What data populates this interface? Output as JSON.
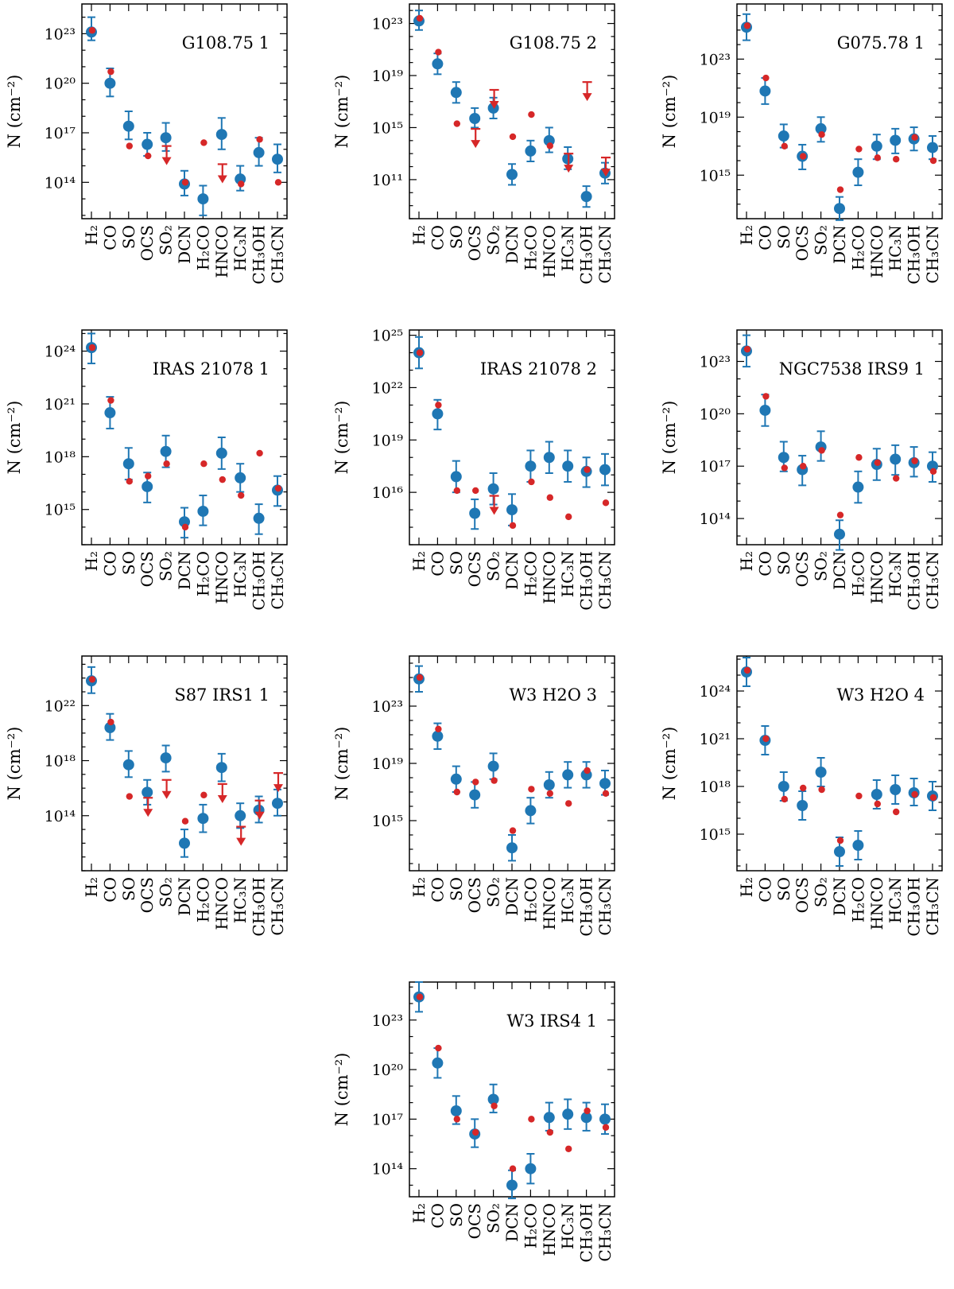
{
  "figure": {
    "y_axis_label": "N (cm⁻²)",
    "molecules": [
      "H₂",
      "CO",
      "SO",
      "OCS",
      "SO₂",
      "DCN",
      "H₂CO",
      "HNCO",
      "HC₃N",
      "CH₃OH",
      "CH₃CN"
    ]
  },
  "colors": {
    "observed": "#1f77b4",
    "model": "#d62728"
  },
  "chart_data": [
    {
      "type": "scatter",
      "title": "G108.75 1",
      "ylim_log": [
        11.8,
        24.8
      ],
      "yticks": [
        14,
        17,
        20,
        23
      ],
      "observed": [
        {
          "v": 23.1,
          "lo": 22.6,
          "hi": 24.0
        },
        {
          "v": 20.0,
          "lo": 19.2,
          "hi": 20.9
        },
        {
          "v": 17.4,
          "lo": 16.6,
          "hi": 18.3
        },
        {
          "v": 16.3,
          "lo": 15.6,
          "hi": 17.0
        },
        {
          "v": 16.7,
          "lo": 15.9,
          "hi": 17.6
        },
        {
          "v": 13.9,
          "lo": 13.2,
          "hi": 14.7
        },
        {
          "v": 13.0,
          "lo": 12.0,
          "hi": 13.8
        },
        {
          "v": 16.9,
          "lo": 16.0,
          "hi": 17.9
        },
        {
          "v": 14.2,
          "lo": 13.5,
          "hi": 15.0
        },
        {
          "v": 15.8,
          "lo": 15.0,
          "hi": 16.7
        },
        {
          "v": 15.4,
          "lo": 14.6,
          "hi": 16.3
        }
      ],
      "model": [
        {
          "v": 23.2
        },
        {
          "v": 20.7
        },
        {
          "v": 16.2
        },
        {
          "v": 15.6
        },
        {
          "v": 16.2,
          "upper": true
        },
        {
          "v": 14.0
        },
        {
          "v": 16.4
        },
        {
          "v": 15.1,
          "upper": true
        },
        {
          "v": 13.9
        },
        {
          "v": 16.6
        },
        {
          "v": 14.0
        }
      ]
    },
    {
      "type": "scatter",
      "title": "G108.75 2",
      "ylim_log": [
        8.0,
        24.5
      ],
      "yticks": [
        11,
        15,
        19,
        23
      ],
      "observed": [
        {
          "v": 23.2,
          "lo": 22.5,
          "hi": 24.0
        },
        {
          "v": 19.9,
          "lo": 19.1,
          "hi": 20.7
        },
        {
          "v": 17.7,
          "lo": 16.9,
          "hi": 18.5
        },
        {
          "v": 15.7,
          "lo": 15.0,
          "hi": 16.5
        },
        {
          "v": 16.5,
          "lo": 15.7,
          "hi": 17.3
        },
        {
          "v": 11.4,
          "lo": 10.6,
          "hi": 12.2
        },
        {
          "v": 13.2,
          "lo": 12.4,
          "hi": 14.0
        },
        {
          "v": 14.0,
          "lo": 13.1,
          "hi": 15.0
        },
        {
          "v": 12.6,
          "lo": 11.8,
          "hi": 13.5
        },
        {
          "v": 9.7,
          "lo": 8.9,
          "hi": 10.5
        },
        {
          "v": 11.5,
          "lo": 10.7,
          "hi": 12.3
        }
      ],
      "model": [
        {
          "v": 23.4
        },
        {
          "v": 20.8
        },
        {
          "v": 15.3
        },
        {
          "v": 14.9,
          "upper": true
        },
        {
          "v": 17.9,
          "upper": true
        },
        {
          "v": 14.3
        },
        {
          "v": 16.0
        },
        {
          "v": 13.6
        },
        {
          "v": 13.0,
          "upper": true
        },
        {
          "v": 18.5,
          "upper": true
        },
        {
          "v": 12.7,
          "upper": true
        }
      ]
    },
    {
      "type": "scatter",
      "title": "G075.78 1",
      "ylim_log": [
        12.0,
        26.8
      ],
      "yticks": [
        15,
        19,
        23
      ],
      "observed": [
        {
          "v": 25.2,
          "lo": 24.3,
          "hi": 26.1
        },
        {
          "v": 20.8,
          "lo": 19.9,
          "hi": 21.7
        },
        {
          "v": 17.7,
          "lo": 16.9,
          "hi": 18.5
        },
        {
          "v": 16.3,
          "lo": 15.4,
          "hi": 17.1
        },
        {
          "v": 18.2,
          "lo": 17.3,
          "hi": 19.0
        },
        {
          "v": 12.7,
          "lo": 11.9,
          "hi": 13.5
        },
        {
          "v": 15.2,
          "lo": 14.3,
          "hi": 16.1
        },
        {
          "v": 17.0,
          "lo": 16.1,
          "hi": 17.8
        },
        {
          "v": 17.4,
          "lo": 16.5,
          "hi": 18.2
        },
        {
          "v": 17.5,
          "lo": 16.7,
          "hi": 18.3
        },
        {
          "v": 16.9,
          "lo": 16.1,
          "hi": 17.7
        }
      ],
      "model": [
        {
          "v": 25.3
        },
        {
          "v": 21.7
        },
        {
          "v": 17.0
        },
        {
          "v": 16.3
        },
        {
          "v": 17.8
        },
        {
          "v": 14.0
        },
        {
          "v": 16.8
        },
        {
          "v": 16.2
        },
        {
          "v": 16.1
        },
        {
          "v": 17.6
        },
        {
          "v": 16.0
        }
      ]
    },
    {
      "type": "scatter",
      "title": "IRAS 21078 1",
      "ylim_log": [
        13.0,
        25.2
      ],
      "yticks": [
        15,
        18,
        21,
        24
      ],
      "observed": [
        {
          "v": 24.2,
          "lo": 23.3,
          "hi": 25.0
        },
        {
          "v": 20.5,
          "lo": 19.6,
          "hi": 21.4
        },
        {
          "v": 17.6,
          "lo": 16.7,
          "hi": 18.5
        },
        {
          "v": 16.3,
          "lo": 15.4,
          "hi": 17.1
        },
        {
          "v": 18.3,
          "lo": 17.4,
          "hi": 19.2
        },
        {
          "v": 14.3,
          "lo": 13.4,
          "hi": 15.1
        },
        {
          "v": 14.9,
          "lo": 14.1,
          "hi": 15.8
        },
        {
          "v": 18.2,
          "lo": 17.3,
          "hi": 19.1
        },
        {
          "v": 16.8,
          "lo": 16.0,
          "hi": 17.6
        },
        {
          "v": 14.5,
          "lo": 13.6,
          "hi": 15.3
        },
        {
          "v": 16.1,
          "lo": 15.2,
          "hi": 16.9
        }
      ],
      "model": [
        {
          "v": 24.2
        },
        {
          "v": 21.2
        },
        {
          "v": 16.6
        },
        {
          "v": 16.9
        },
        {
          "v": 17.6
        },
        {
          "v": 14.0
        },
        {
          "v": 17.6
        },
        {
          "v": 16.7
        },
        {
          "v": 15.8
        },
        {
          "v": 18.2
        },
        {
          "v": 16.2
        }
      ]
    },
    {
      "type": "scatter",
      "title": "IRAS 21078 2",
      "ylim_log": [
        13.0,
        25.3
      ],
      "yticks": [
        16,
        19,
        22,
        25
      ],
      "observed": [
        {
          "v": 24.0,
          "lo": 23.1,
          "hi": 24.9
        },
        {
          "v": 20.5,
          "lo": 19.6,
          "hi": 21.3
        },
        {
          "v": 16.9,
          "lo": 16.0,
          "hi": 17.8
        },
        {
          "v": 14.8,
          "lo": 13.9,
          "hi": 15.6
        },
        {
          "v": 16.2,
          "lo": 15.3,
          "hi": 17.1
        },
        {
          "v": 15.0,
          "lo": 14.1,
          "hi": 15.9
        },
        {
          "v": 17.5,
          "lo": 16.6,
          "hi": 18.4
        },
        {
          "v": 18.0,
          "lo": 17.1,
          "hi": 18.9
        },
        {
          "v": 17.5,
          "lo": 16.6,
          "hi": 18.4
        },
        {
          "v": 17.2,
          "lo": 16.3,
          "hi": 18.0
        },
        {
          "v": 17.3,
          "lo": 16.4,
          "hi": 18.2
        }
      ],
      "model": [
        {
          "v": 24.0
        },
        {
          "v": 21.0
        },
        {
          "v": 16.1
        },
        {
          "v": 16.1
        },
        {
          "v": 15.8,
          "upper": true
        },
        {
          "v": 14.1
        },
        {
          "v": 16.6
        },
        {
          "v": 15.7
        },
        {
          "v": 14.6
        },
        {
          "v": 17.3
        },
        {
          "v": 15.4
        }
      ]
    },
    {
      "type": "scatter",
      "title": "NGC7538 IRS9 1",
      "ylim_log": [
        12.5,
        24.8
      ],
      "yticks": [
        14,
        17,
        20,
        23
      ],
      "observed": [
        {
          "v": 23.6,
          "lo": 22.7,
          "hi": 24.5
        },
        {
          "v": 20.2,
          "lo": 19.3,
          "hi": 21.1
        },
        {
          "v": 17.5,
          "lo": 16.7,
          "hi": 18.4
        },
        {
          "v": 16.8,
          "lo": 15.9,
          "hi": 17.6
        },
        {
          "v": 18.1,
          "lo": 17.3,
          "hi": 19.0
        },
        {
          "v": 13.1,
          "lo": 12.2,
          "hi": 13.9
        },
        {
          "v": 15.8,
          "lo": 14.9,
          "hi": 16.7
        },
        {
          "v": 17.1,
          "lo": 16.2,
          "hi": 18.0
        },
        {
          "v": 17.4,
          "lo": 16.5,
          "hi": 18.2
        },
        {
          "v": 17.2,
          "lo": 16.4,
          "hi": 18.1
        },
        {
          "v": 17.0,
          "lo": 16.1,
          "hi": 17.8
        }
      ],
      "model": [
        {
          "v": 23.7
        },
        {
          "v": 21.0
        },
        {
          "v": 16.9
        },
        {
          "v": 17.0
        },
        {
          "v": 17.9
        },
        {
          "v": 14.2
        },
        {
          "v": 17.5
        },
        {
          "v": 17.2
        },
        {
          "v": 16.3
        },
        {
          "v": 17.3
        },
        {
          "v": 16.7
        }
      ]
    },
    {
      "type": "scatter",
      "title": "S87 IRS1 1",
      "ylim_log": [
        10.0,
        25.6
      ],
      "yticks": [
        14,
        18,
        22
      ],
      "observed": [
        {
          "v": 23.8,
          "lo": 22.9,
          "hi": 24.8
        },
        {
          "v": 20.4,
          "lo": 19.5,
          "hi": 21.4
        },
        {
          "v": 17.7,
          "lo": 16.8,
          "hi": 18.7
        },
        {
          "v": 15.7,
          "lo": 14.8,
          "hi": 16.6
        },
        {
          "v": 18.2,
          "lo": 17.2,
          "hi": 19.1
        },
        {
          "v": 12.0,
          "lo": 11.0,
          "hi": 13.0
        },
        {
          "v": 13.8,
          "lo": 12.8,
          "hi": 14.8
        },
        {
          "v": 17.5,
          "lo": 16.5,
          "hi": 18.5
        },
        {
          "v": 14.0,
          "lo": 13.1,
          "hi": 14.9
        },
        {
          "v": 14.4,
          "lo": 13.5,
          "hi": 15.4
        },
        {
          "v": 14.9,
          "lo": 14.0,
          "hi": 15.9
        }
      ],
      "model": [
        {
          "v": 23.9
        },
        {
          "v": 20.8
        },
        {
          "v": 15.4
        },
        {
          "v": 15.3,
          "upper": true
        },
        {
          "v": 16.6,
          "upper": true
        },
        {
          "v": 13.6
        },
        {
          "v": 15.5
        },
        {
          "v": 16.3,
          "upper": true
        },
        {
          "v": 13.2,
          "upper": true
        },
        {
          "v": 15.1,
          "upper": true
        },
        {
          "v": 17.1,
          "upper": true
        }
      ]
    },
    {
      "type": "scatter",
      "title": "W3 H2O 3",
      "ylim_log": [
        11.5,
        26.5
      ],
      "yticks": [
        15,
        19,
        23
      ],
      "observed": [
        {
          "v": 24.9,
          "lo": 24.0,
          "hi": 25.8
        },
        {
          "v": 20.9,
          "lo": 20.0,
          "hi": 21.8
        },
        {
          "v": 17.9,
          "lo": 17.0,
          "hi": 18.8
        },
        {
          "v": 16.8,
          "lo": 15.9,
          "hi": 17.7
        },
        {
          "v": 18.8,
          "lo": 17.9,
          "hi": 19.7
        },
        {
          "v": 13.1,
          "lo": 12.2,
          "hi": 14.0
        },
        {
          "v": 15.7,
          "lo": 14.8,
          "hi": 16.6
        },
        {
          "v": 17.5,
          "lo": 16.6,
          "hi": 18.4
        },
        {
          "v": 18.2,
          "lo": 17.3,
          "hi": 19.1
        },
        {
          "v": 18.2,
          "lo": 17.3,
          "hi": 19.1
        },
        {
          "v": 17.6,
          "lo": 16.8,
          "hi": 18.5
        }
      ],
      "model": [
        {
          "v": 25.0
        },
        {
          "v": 21.4
        },
        {
          "v": 17.0
        },
        {
          "v": 17.7
        },
        {
          "v": 17.8
        },
        {
          "v": 14.3
        },
        {
          "v": 17.2
        },
        {
          "v": 16.9
        },
        {
          "v": 16.2
        },
        {
          "v": 18.5
        },
        {
          "v": 16.9
        }
      ]
    },
    {
      "type": "scatter",
      "title": "W3 H2O 4",
      "ylim_log": [
        12.7,
        26.2
      ],
      "yticks": [
        15,
        18,
        21,
        24
      ],
      "observed": [
        {
          "v": 25.2,
          "lo": 24.3,
          "hi": 26.1
        },
        {
          "v": 20.9,
          "lo": 20.0,
          "hi": 21.8
        },
        {
          "v": 18.0,
          "lo": 17.1,
          "hi": 18.9
        },
        {
          "v": 16.8,
          "lo": 15.9,
          "hi": 17.7
        },
        {
          "v": 18.9,
          "lo": 18.0,
          "hi": 19.8
        },
        {
          "v": 13.9,
          "lo": 13.0,
          "hi": 14.8
        },
        {
          "v": 14.3,
          "lo": 13.4,
          "hi": 15.2
        },
        {
          "v": 17.5,
          "lo": 16.6,
          "hi": 18.4
        },
        {
          "v": 17.8,
          "lo": 16.9,
          "hi": 18.7
        },
        {
          "v": 17.6,
          "lo": 16.8,
          "hi": 18.5
        },
        {
          "v": 17.4,
          "lo": 16.5,
          "hi": 18.3
        }
      ],
      "model": [
        {
          "v": 25.3
        },
        {
          "v": 21.0
        },
        {
          "v": 17.2
        },
        {
          "v": 17.9
        },
        {
          "v": 17.8
        },
        {
          "v": 14.6
        },
        {
          "v": 17.4
        },
        {
          "v": 16.9
        },
        {
          "v": 16.4
        },
        {
          "v": 17.5
        },
        {
          "v": 17.3
        }
      ]
    },
    {
      "type": "scatter",
      "title": "W3 IRS4 1",
      "ylim_log": [
        12.3,
        25.3
      ],
      "yticks": [
        14,
        17,
        20,
        23
      ],
      "observed": [
        {
          "v": 24.4,
          "lo": 23.5,
          "hi": 25.3
        },
        {
          "v": 20.4,
          "lo": 19.5,
          "hi": 21.3
        },
        {
          "v": 17.5,
          "lo": 16.7,
          "hi": 18.4
        },
        {
          "v": 16.1,
          "lo": 15.3,
          "hi": 17.0
        },
        {
          "v": 18.2,
          "lo": 17.4,
          "hi": 19.1
        },
        {
          "v": 13.0,
          "lo": 12.2,
          "hi": 13.9
        },
        {
          "v": 14.0,
          "lo": 13.1,
          "hi": 14.9
        },
        {
          "v": 17.1,
          "lo": 16.3,
          "hi": 18.0
        },
        {
          "v": 17.3,
          "lo": 16.4,
          "hi": 18.2
        },
        {
          "v": 17.1,
          "lo": 16.3,
          "hi": 18.0
        },
        {
          "v": 17.0,
          "lo": 16.1,
          "hi": 17.9
        }
      ],
      "model": [
        {
          "v": 24.4
        },
        {
          "v": 21.3
        },
        {
          "v": 17.0
        },
        {
          "v": 16.2
        },
        {
          "v": 17.8
        },
        {
          "v": 14.0
        },
        {
          "v": 17.0
        },
        {
          "v": 16.2
        },
        {
          "v": 15.2
        },
        {
          "v": 17.5
        },
        {
          "v": 16.5
        }
      ]
    }
  ]
}
